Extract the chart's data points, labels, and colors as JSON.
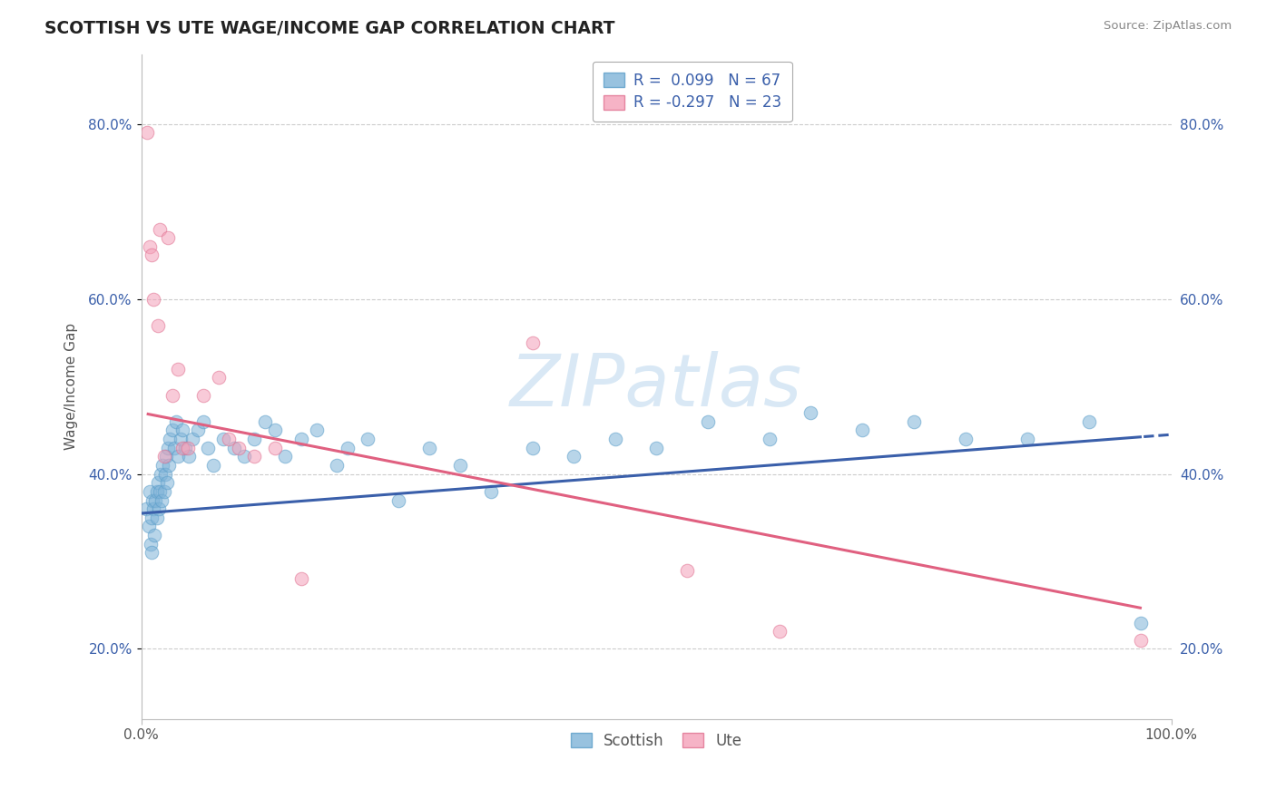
{
  "title": "SCOTTISH VS UTE WAGE/INCOME GAP CORRELATION CHART",
  "source": "Source: ZipAtlas.com",
  "ylabel": "Wage/Income Gap",
  "watermark": "ZIPatlas",
  "legend_entries": [
    {
      "label": "Scottish",
      "R": "0.099",
      "N": "67",
      "color": "#a8c8e8"
    },
    {
      "label": "Ute",
      "R": "-0.297",
      "N": "23",
      "color": "#f4a8c0"
    }
  ],
  "scottish_x": [
    0.005,
    0.007,
    0.008,
    0.009,
    0.01,
    0.01,
    0.011,
    0.012,
    0.013,
    0.014,
    0.015,
    0.015,
    0.016,
    0.017,
    0.018,
    0.019,
    0.02,
    0.021,
    0.022,
    0.023,
    0.024,
    0.025,
    0.026,
    0.027,
    0.028,
    0.03,
    0.032,
    0.034,
    0.036,
    0.038,
    0.04,
    0.043,
    0.046,
    0.05,
    0.055,
    0.06,
    0.065,
    0.07,
    0.08,
    0.09,
    0.1,
    0.11,
    0.12,
    0.13,
    0.14,
    0.155,
    0.17,
    0.19,
    0.2,
    0.22,
    0.25,
    0.28,
    0.31,
    0.34,
    0.38,
    0.42,
    0.46,
    0.5,
    0.55,
    0.61,
    0.65,
    0.7,
    0.75,
    0.8,
    0.86,
    0.92,
    0.97
  ],
  "scottish_y": [
    0.36,
    0.34,
    0.38,
    0.32,
    0.35,
    0.31,
    0.37,
    0.36,
    0.33,
    0.37,
    0.38,
    0.35,
    0.39,
    0.36,
    0.38,
    0.4,
    0.37,
    0.41,
    0.38,
    0.4,
    0.42,
    0.39,
    0.43,
    0.41,
    0.44,
    0.45,
    0.43,
    0.46,
    0.42,
    0.44,
    0.45,
    0.43,
    0.42,
    0.44,
    0.45,
    0.46,
    0.43,
    0.41,
    0.44,
    0.43,
    0.42,
    0.44,
    0.46,
    0.45,
    0.42,
    0.44,
    0.45,
    0.41,
    0.43,
    0.44,
    0.37,
    0.43,
    0.41,
    0.38,
    0.43,
    0.42,
    0.44,
    0.43,
    0.46,
    0.44,
    0.47,
    0.45,
    0.46,
    0.44,
    0.44,
    0.46,
    0.23
  ],
  "ute_x": [
    0.006,
    0.008,
    0.01,
    0.012,
    0.016,
    0.018,
    0.022,
    0.026,
    0.03,
    0.036,
    0.04,
    0.045,
    0.06,
    0.075,
    0.085,
    0.095,
    0.11,
    0.13,
    0.155,
    0.38,
    0.53,
    0.62,
    0.97
  ],
  "ute_y": [
    0.79,
    0.66,
    0.65,
    0.6,
    0.57,
    0.68,
    0.42,
    0.67,
    0.49,
    0.52,
    0.43,
    0.43,
    0.49,
    0.51,
    0.44,
    0.43,
    0.42,
    0.43,
    0.28,
    0.55,
    0.29,
    0.22,
    0.21
  ],
  "xlim": [
    0.0,
    1.0
  ],
  "ylim": [
    0.12,
    0.88
  ],
  "yticks": [
    0.2,
    0.4,
    0.6,
    0.8
  ],
  "ytick_labels": [
    "20.0%",
    "40.0%",
    "60.0%",
    "80.0%"
  ],
  "scottish_color": "#7fb3d8",
  "scottish_edge": "#5b9ec9",
  "ute_color": "#f4a0b8",
  "ute_edge": "#e07090",
  "scatter_alpha": 0.55,
  "scatter_size": 110,
  "trend_blue_color": "#3a5faa",
  "trend_pink_color": "#e06080",
  "background_color": "#ffffff",
  "grid_color": "#cccccc",
  "title_color": "#222222",
  "watermark_color": "#c5ddf0",
  "legend_text_color": "#3a5faa"
}
